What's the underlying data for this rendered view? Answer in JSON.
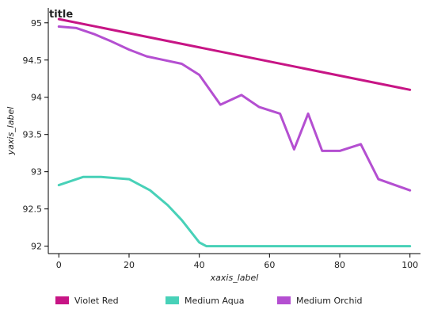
{
  "chart_data": {
    "type": "line",
    "title": "title",
    "xlabel": "xaxis_label",
    "ylabel": "yaxis_label",
    "xlim": [
      -3,
      103
    ],
    "ylim": [
      91.9,
      95.2
    ],
    "xticks": [
      0,
      20,
      40,
      60,
      80,
      100
    ],
    "xtick_labels": [
      "0",
      "20",
      "40",
      "60",
      "80",
      "100"
    ],
    "yticks": [
      92,
      92.5,
      93,
      93.5,
      94,
      94.5,
      95
    ],
    "ytick_labels": [
      "92",
      "92.5",
      "93",
      "93.5",
      "94",
      "94.5",
      "95"
    ],
    "grid": false,
    "legend_position": "bottom",
    "series": [
      {
        "name": "Violet Red",
        "color": "#c71585",
        "x": [
          0,
          100
        ],
        "y": [
          95.05,
          94.1
        ]
      },
      {
        "name": "Medium Aqua",
        "color": "#48d1b8",
        "x": [
          0,
          7,
          12,
          20,
          26,
          31,
          35,
          40,
          42,
          44,
          60,
          80,
          100
        ],
        "y": [
          92.82,
          92.93,
          92.93,
          92.9,
          92.75,
          92.55,
          92.35,
          92.05,
          92.0,
          92.0,
          92.0,
          92.0,
          92.0
        ]
      },
      {
        "name": "Medium Orchid",
        "color": "#b44fd1",
        "x": [
          0,
          5,
          10,
          15,
          20,
          25,
          30,
          35,
          40,
          46,
          52,
          57,
          63,
          67,
          71,
          75,
          80,
          86,
          91,
          100
        ],
        "y": [
          94.95,
          94.93,
          94.85,
          94.75,
          94.64,
          94.55,
          94.5,
          94.45,
          94.3,
          93.9,
          94.03,
          93.87,
          93.78,
          93.3,
          93.78,
          93.28,
          93.28,
          93.37,
          92.9,
          92.75
        ]
      }
    ]
  }
}
